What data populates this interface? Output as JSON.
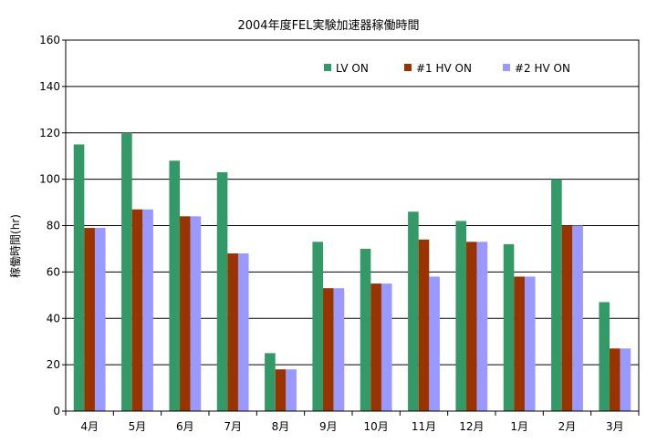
{
  "chart_data": {
    "type": "bar",
    "title": "2004年度FEL実験加速器稼働時間",
    "xlabel": "",
    "ylabel": "稼働時間(hr)",
    "ylim": [
      0,
      160
    ],
    "yticks": [
      0,
      20,
      40,
      60,
      80,
      100,
      120,
      140,
      160
    ],
    "grid": true,
    "legend_position": "top-right inside",
    "categories": [
      "4月",
      "5月",
      "6月",
      "7月",
      "8月",
      "9月",
      "10月",
      "11月",
      "12月",
      "1月",
      "2月",
      "3月"
    ],
    "series": [
      {
        "name": "LV ON",
        "color": "#339966",
        "values": [
          115,
          120,
          108,
          103,
          25,
          73,
          70,
          86,
          82,
          72,
          100,
          47
        ]
      },
      {
        "name": "#1  HV ON",
        "color": "#993300",
        "values": [
          79,
          87,
          84,
          68,
          18,
          53,
          55,
          74,
          73,
          58,
          80,
          27
        ]
      },
      {
        "name": "#2  HV ON",
        "color": "#9999ff",
        "values": [
          79,
          87,
          84,
          68,
          18,
          53,
          55,
          58,
          73,
          58,
          80,
          27
        ]
      }
    ]
  }
}
